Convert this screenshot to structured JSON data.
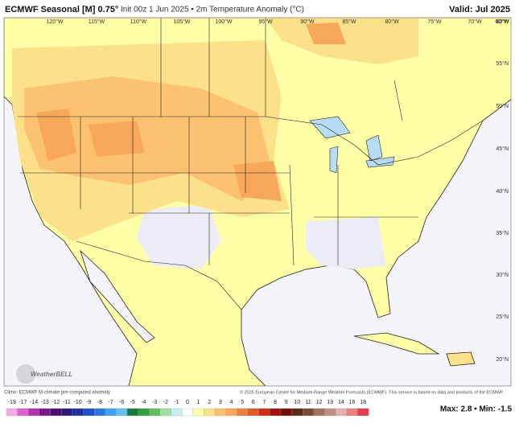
{
  "header": {
    "title": "ECMWF Seasonal [M] 0.75°",
    "subtitle": "Init 00z 1 Jun 2025 • 2m Temperature Anomaly (°C)",
    "valid": "Valid: Jul 2025"
  },
  "map": {
    "lon_labels": [
      "120°W",
      "115°W",
      "110°W",
      "105°W",
      "100°W",
      "95°W",
      "90°W",
      "85°W",
      "80°W",
      "75°W",
      "70°W",
      "60°W"
    ],
    "lat_labels": [
      "60°N",
      "55°N",
      "50°N",
      "45°N",
      "40°N",
      "35°N",
      "30°N",
      "25°N",
      "20°N"
    ],
    "logo": "WeatherBELL"
  },
  "footer": {
    "climo": "Climo: ECMWF M-climate pre-computed anomaly",
    "copyright": "© 2025 European Centre for Medium-Range Weather Forecasts (ECMWF). This service is based on data and products of the ECMWF.",
    "stats": "Max: 2.8 • Min: -1.5"
  },
  "legend": {
    "ticks": [
      -19,
      -17,
      -14,
      -13,
      -12,
      -11,
      -10,
      -9,
      -8,
      -7,
      -6,
      -5,
      -4,
      -3,
      -2,
      -1,
      0,
      1,
      2,
      3,
      4,
      5,
      6,
      7,
      8,
      9,
      10,
      11,
      12,
      13,
      14,
      16,
      18
    ],
    "colors": [
      "#f7a8e8",
      "#e060d0",
      "#b030b0",
      "#7a1a8a",
      "#4a1070",
      "#2a1a80",
      "#2030a0",
      "#2050c8",
      "#2878e0",
      "#40a0f0",
      "#60c0f8",
      "#1a7a3a",
      "#30a040",
      "#60c060",
      "#a0e0a0",
      "#c8eef0",
      "#ffffff",
      "#ffffa8",
      "#fde08a",
      "#fcc270",
      "#f8a85a",
      "#f08040",
      "#e05a28",
      "#c83018",
      "#a01010",
      "#701008",
      "#5a2a1a",
      "#7a4a3a",
      "#a07060",
      "#c09088",
      "#e0b0b0",
      "#f08080",
      "#e04050"
    ]
  }
}
